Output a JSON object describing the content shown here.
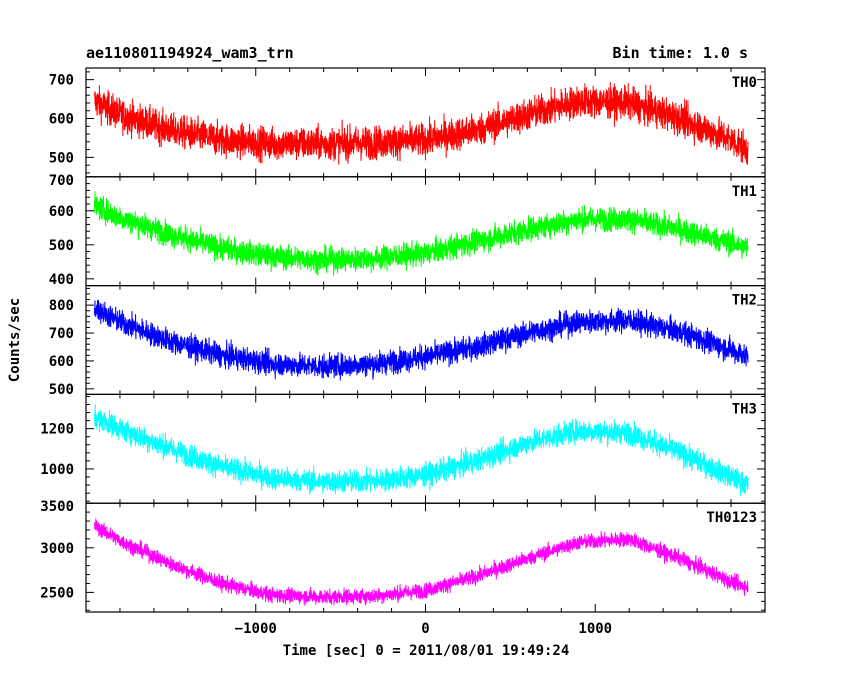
{
  "header": {
    "obs_id": "ae110801194924_wam3_trn",
    "bin_time": "Bin time: 1.0 s"
  },
  "chart_data": {
    "type": "line",
    "title": "ae110801194924_wam3_trn",
    "subtitle": "Bin time: 1.0 s",
    "xlabel": "Time [sec] 0 = 2011/08/01 19:49:24",
    "ylabel": "Counts/sec",
    "xlim": [
      -2000,
      2000
    ],
    "xticks": [
      -1000,
      0,
      1000
    ],
    "grid": false,
    "panels": [
      {
        "name": "TH0",
        "color": "#ff0000",
        "ylim": [
          450,
          730
        ],
        "yticks": [
          500,
          600,
          700
        ],
        "noise": 30,
        "trend_x": [
          -1950,
          -1800,
          -1500,
          -1200,
          -900,
          -600,
          -300,
          0,
          300,
          600,
          900,
          1200,
          1500,
          1800,
          1900
        ],
        "trend_y": [
          645,
          610,
          570,
          545,
          535,
          535,
          538,
          545,
          570,
          610,
          645,
          640,
          600,
          545,
          520
        ]
      },
      {
        "name": "TH1",
        "color": "#00ff00",
        "ylim": [
          380,
          700
        ],
        "yticks": [
          400,
          500,
          600,
          700
        ],
        "noise": 25,
        "trend_x": [
          -1950,
          -1800,
          -1500,
          -1200,
          -900,
          -600,
          -300,
          0,
          300,
          600,
          900,
          1200,
          1500,
          1800,
          1900
        ],
        "trend_y": [
          615,
          580,
          530,
          490,
          465,
          455,
          460,
          475,
          510,
          545,
          575,
          575,
          545,
          505,
          490
        ]
      },
      {
        "name": "TH2",
        "color": "#0000ff",
        "ylim": [
          480,
          870
        ],
        "yticks": [
          500,
          600,
          700,
          800
        ],
        "noise": 30,
        "trend_x": [
          -1950,
          -1800,
          -1500,
          -1200,
          -900,
          -600,
          -300,
          0,
          300,
          600,
          900,
          1200,
          1500,
          1800,
          1900
        ],
        "trend_y": [
          790,
          740,
          670,
          620,
          590,
          580,
          590,
          615,
          650,
          700,
          740,
          745,
          705,
          640,
          615
        ]
      },
      {
        "name": "TH3",
        "color": "#00ffff",
        "ylim": [
          830,
          1370
        ],
        "yticks": [
          1000,
          1200
        ],
        "noise": 40,
        "trend_x": [
          -1950,
          -1800,
          -1500,
          -1200,
          -900,
          -600,
          -300,
          0,
          300,
          600,
          900,
          1200,
          1500,
          1800,
          1900
        ],
        "trend_y": [
          1260,
          1200,
          1100,
          1010,
          955,
          935,
          940,
          970,
          1040,
          1130,
          1190,
          1180,
          1080,
          960,
          920
        ]
      },
      {
        "name": "TH0123",
        "color": "#ff00ff",
        "ylim": [
          2280,
          3500
        ],
        "yticks": [
          2500,
          3000,
          3500
        ],
        "noise": 60,
        "trend_x": [
          -1950,
          -1800,
          -1500,
          -1200,
          -900,
          -600,
          -300,
          0,
          300,
          600,
          900,
          1200,
          1500,
          1800,
          1900
        ],
        "trend_y": [
          3250,
          3080,
          2820,
          2600,
          2470,
          2450,
          2460,
          2520,
          2680,
          2880,
          3060,
          3100,
          2880,
          2620,
          2560
        ]
      }
    ]
  }
}
